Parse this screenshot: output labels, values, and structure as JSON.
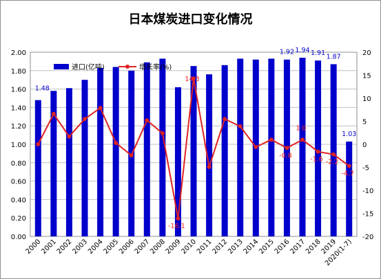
{
  "chart_data": {
    "type": "bar",
    "title": "日本煤炭进口变化情况",
    "categories": [
      "2000",
      "2001",
      "2002",
      "2003",
      "2004",
      "2005",
      "2006",
      "2007",
      "2008",
      "2009",
      "2010",
      "2011",
      "2012",
      "2013",
      "2014",
      "2015",
      "2016",
      "2017",
      "2018",
      "2019",
      "2020(1-7)"
    ],
    "series": [
      {
        "name": "进口(亿吨)",
        "type": "bar",
        "axis": "left",
        "color": "#0000cc",
        "values": [
          1.48,
          1.58,
          1.61,
          1.7,
          1.83,
          1.84,
          1.8,
          1.89,
          1.93,
          1.62,
          1.85,
          1.76,
          1.86,
          1.93,
          1.92,
          1.93,
          1.92,
          1.94,
          1.91,
          1.87,
          1.03
        ]
      },
      {
        "name": "增长率(%)",
        "type": "line",
        "axis": "right",
        "color": "#dd2222",
        "values": [
          0.0,
          6.6,
          1.7,
          5.5,
          7.9,
          0.3,
          -2.4,
          5.2,
          2.4,
          -16.1,
          14.3,
          -4.9,
          5.5,
          3.9,
          -0.6,
          1.0,
          -0.8,
          1.0,
          -1.6,
          -2.2,
          -4.7
        ]
      }
    ],
    "bar_labels": {
      "0": "1.48",
      "16": "1.92",
      "17": "1.94",
      "18": "1.91",
      "19": "1.87",
      "20": "1.03"
    },
    "line_labels": {
      "9": "-16.1",
      "10": "14.3",
      "16": "-0.8",
      "17": "1.0",
      "18": "-1.6",
      "19": "-2.2",
      "20": "-4.7"
    },
    "left_axis": {
      "min": 0,
      "max": 2.0,
      "step": 0.2,
      "ticks": [
        "0.00",
        "0.20",
        "0.40",
        "0.60",
        "0.80",
        "1.00",
        "1.20",
        "1.40",
        "1.60",
        "1.80",
        "2.00"
      ]
    },
    "right_axis": {
      "min": -20,
      "max": 20,
      "step": 5,
      "ticks": [
        "-20",
        "-15",
        "-10",
        "-5",
        "0",
        "5",
        "10",
        "15",
        "20"
      ]
    },
    "grid": true,
    "legend_position": "top-left"
  }
}
